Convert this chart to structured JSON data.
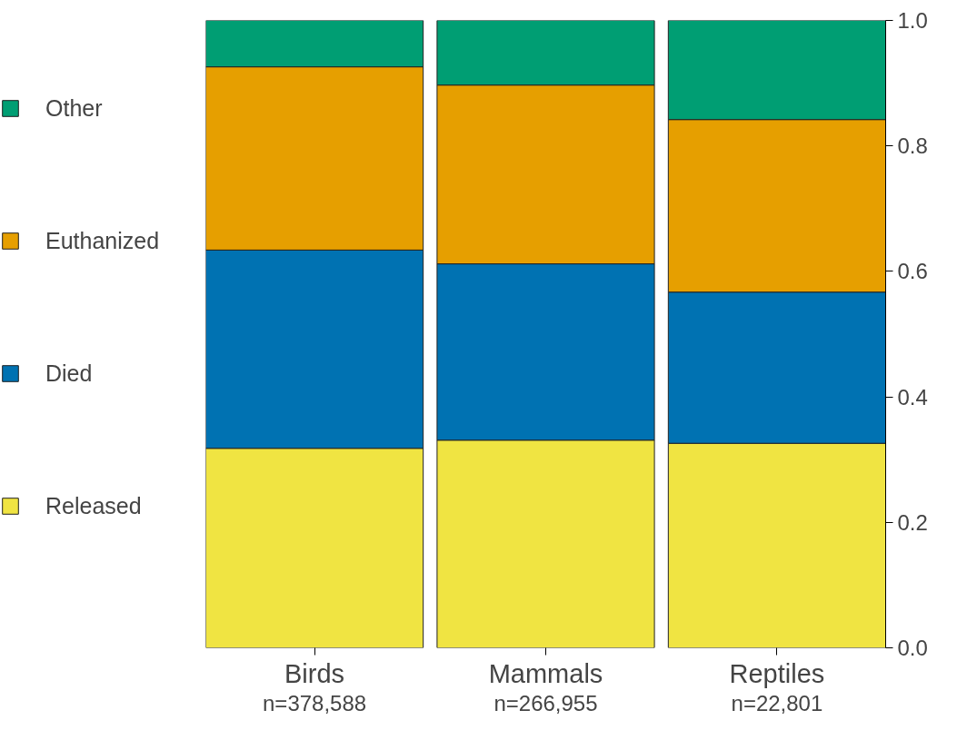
{
  "chart_data": {
    "type": "bar",
    "stacked": true,
    "categories": [
      "Birds",
      "Mammals",
      "Reptiles"
    ],
    "series": [
      {
        "name": "Released",
        "color": "#f0e442",
        "values": [
          0.318,
          0.331,
          0.326
        ]
      },
      {
        "name": "Died",
        "color": "#0072b2",
        "values": [
          0.316,
          0.281,
          0.241
        ]
      },
      {
        "name": "Euthanized",
        "color": "#e69f00",
        "values": [
          0.292,
          0.285,
          0.275
        ]
      },
      {
        "name": "Other",
        "color": "#009e73",
        "values": [
          0.074,
          0.103,
          0.158
        ]
      }
    ],
    "ylim": [
      0,
      1
    ],
    "yticks": [
      {
        "value": 0,
        "label": "0.0"
      },
      0.2,
      0.4,
      0.6,
      0.8,
      {
        "value": 1,
        "label": "1.0"
      }
    ],
    "legend": "left",
    "grid": false,
    "annotations": [
      "n=378,588",
      "n=266,955",
      "n=22,801"
    ]
  }
}
